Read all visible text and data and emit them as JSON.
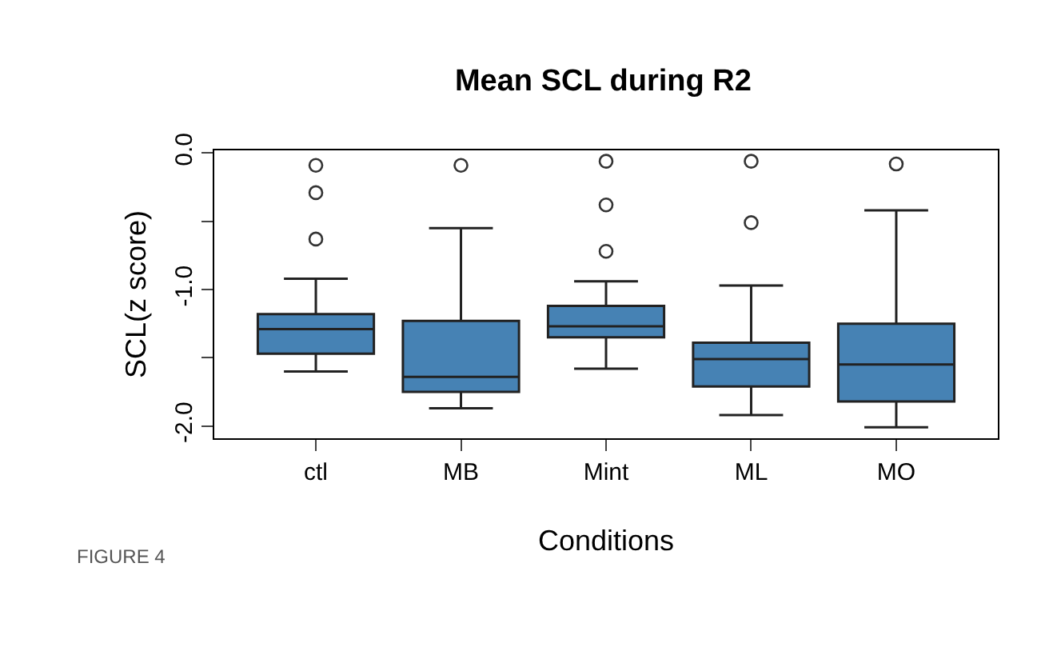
{
  "chart_data": {
    "type": "box",
    "title": "Mean SCL during R2",
    "xlabel": "Conditions",
    "ylabel": "SCL(z score)",
    "categories": [
      "ctl",
      "MB",
      "Mint",
      "ML",
      "MO"
    ],
    "color": "#4682b4",
    "boxes": [
      {
        "low": -1.6,
        "q1": -1.47,
        "median": -1.29,
        "q3": -1.18,
        "high": -0.92,
        "outliers": [
          -0.09,
          -0.29,
          -0.63
        ]
      },
      {
        "low": -1.87,
        "q1": -1.75,
        "median": -1.64,
        "q3": -1.23,
        "high": -0.55,
        "outliers": [
          -0.09
        ]
      },
      {
        "low": -1.58,
        "q1": -1.35,
        "median": -1.27,
        "q3": -1.12,
        "high": -0.94,
        "outliers": [
          -0.06,
          -0.38,
          -0.72
        ]
      },
      {
        "low": -1.92,
        "q1": -1.71,
        "median": -1.51,
        "q3": -1.39,
        "high": -0.97,
        "outliers": [
          -0.06,
          -0.51
        ]
      },
      {
        "low": -2.01,
        "q1": -1.82,
        "median": -1.55,
        "q3": -1.25,
        "high": -0.42,
        "outliers": [
          -0.08
        ]
      }
    ],
    "ylim": [
      -2.09,
      0.02
    ],
    "yticks": [
      {
        "value": 0.0,
        "label": "0.0"
      },
      {
        "value": -0.5,
        "label": null
      },
      {
        "value": -1.0,
        "label": "-1.0"
      },
      {
        "value": -1.5,
        "label": null
      },
      {
        "value": -2.0,
        "label": "-2.0"
      }
    ],
    "marker": "circle",
    "annotations": [
      "FIGURE 4"
    ]
  }
}
